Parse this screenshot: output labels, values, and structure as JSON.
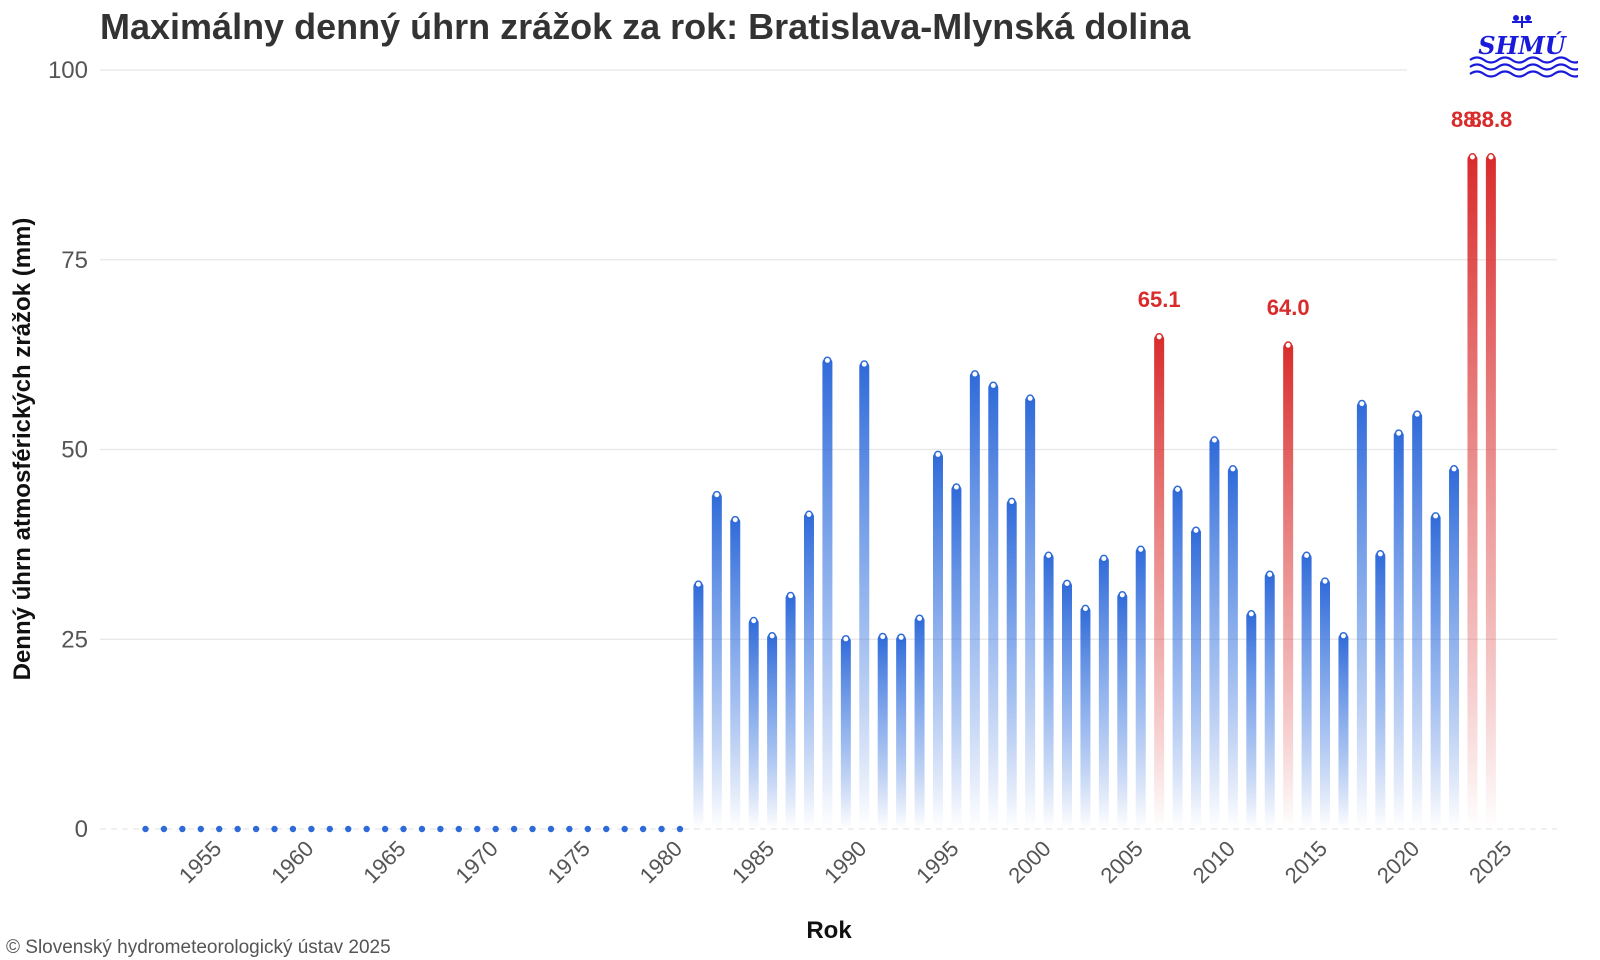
{
  "chart_data": {
    "type": "bar",
    "title": "Maximálny denný úhrn zrážok za rok: Bratislava-Mlynská dolina",
    "xlabel": "Rok",
    "ylabel": "Denný úhrn atmosférických zrážok (mm)",
    "ylim": [
      0,
      100
    ],
    "yticks": [
      0,
      25,
      50,
      75,
      100
    ],
    "xticks": [
      1955,
      1960,
      1965,
      1970,
      1975,
      1980,
      1985,
      1990,
      1995,
      2000,
      2005,
      2010,
      2015,
      2020,
      2025
    ],
    "grid": true,
    "x": [
      1952,
      1953,
      1954,
      1955,
      1956,
      1957,
      1958,
      1959,
      1960,
      1961,
      1962,
      1963,
      1964,
      1965,
      1966,
      1967,
      1968,
      1969,
      1970,
      1971,
      1972,
      1973,
      1974,
      1975,
      1976,
      1977,
      1978,
      1979,
      1980,
      1981,
      1982,
      1983,
      1984,
      1985,
      1986,
      1987,
      1988,
      1989,
      1990,
      1991,
      1992,
      1993,
      1994,
      1995,
      1996,
      1997,
      1998,
      1999,
      2000,
      2001,
      2002,
      2003,
      2004,
      2005,
      2006,
      2007,
      2008,
      2009,
      2010,
      2011,
      2012,
      2013,
      2014,
      2015,
      2016,
      2017,
      2018,
      2019,
      2020,
      2021,
      2022,
      2023,
      2024,
      2025
    ],
    "values": [
      0,
      0,
      0,
      0,
      0,
      0,
      0,
      0,
      0,
      0,
      0,
      0,
      0,
      0,
      0,
      0,
      0,
      0,
      0,
      0,
      0,
      0,
      0,
      0,
      0,
      0,
      0,
      0,
      0,
      0,
      32.5,
      44.3,
      41.0,
      27.7,
      25.7,
      31.0,
      41.7,
      62.0,
      25.3,
      61.5,
      25.6,
      25.5,
      28.0,
      49.6,
      45.3,
      60.2,
      58.7,
      43.4,
      57.0,
      36.3,
      32.6,
      29.3,
      35.9,
      31.1,
      37.1,
      65.1,
      45.0,
      39.6,
      51.5,
      47.7,
      28.6,
      33.8,
      64.0,
      36.3,
      32.9,
      25.7,
      56.3,
      36.5,
      52.4,
      54.9,
      41.5,
      47.7,
      88.8,
      88.8
    ],
    "record_years": [
      2007,
      2014,
      2024,
      2025
    ],
    "labels": [
      {
        "year": 2007,
        "text": "65.1"
      },
      {
        "year": 2014,
        "text": "64.0"
      },
      {
        "year": 2024,
        "text": "88.8"
      },
      {
        "year": 2025,
        "text": "88.8"
      }
    ],
    "colors": {
      "bar": "#2f6ad9",
      "record": "#d92b2b",
      "grid": "#e6e6e6",
      "tick_text": "#555555",
      "label_text": "#d92b2b"
    }
  },
  "logo": {
    "text": "SHMÚ",
    "color": "#1a1adb"
  },
  "copyright": "© Slovenský hydrometeorologický ústav 2025"
}
